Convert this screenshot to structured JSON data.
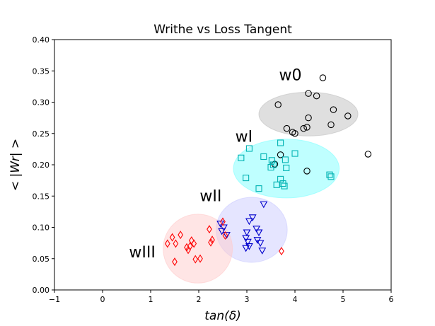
{
  "chart_data": {
    "type": "scatter",
    "title": "Writhe vs Loss Tangent",
    "xlabel": "tan(δ)",
    "ylabel": "< |Wr| >",
    "xlim": [
      -1,
      6
    ],
    "ylim": [
      0.0,
      0.4
    ],
    "xticks": [
      -1,
      0,
      1,
      2,
      3,
      4,
      5,
      6
    ],
    "xtick_labels": [
      "−1",
      "0",
      "1",
      "2",
      "3",
      "4",
      "5",
      "6"
    ],
    "yticks": [
      0.0,
      0.05,
      0.1,
      0.15,
      0.2,
      0.25,
      0.3,
      0.35,
      0.4
    ],
    "ytick_labels": [
      "0.00",
      "0.05",
      "0.10",
      "0.15",
      "0.20",
      "0.25",
      "0.30",
      "0.35",
      "0.40"
    ],
    "grid": false,
    "series": [
      {
        "name": "w0",
        "marker": "circle",
        "color": "#000000",
        "label_pos": [
          3.67,
          0.335
        ],
        "ellipse": {
          "cx": 4.28,
          "cy": 0.281,
          "rx": 1.03,
          "ry": 0.035,
          "fill": "#c0c0c0"
        },
        "points": [
          [
            4.58,
            0.339
          ],
          [
            4.28,
            0.314
          ],
          [
            4.45,
            0.31
          ],
          [
            3.65,
            0.296
          ],
          [
            4.8,
            0.288
          ],
          [
            5.1,
            0.278
          ],
          [
            4.28,
            0.275
          ],
          [
            4.75,
            0.264
          ],
          [
            4.18,
            0.258
          ],
          [
            4.25,
            0.26
          ],
          [
            3.83,
            0.258
          ],
          [
            3.95,
            0.252
          ],
          [
            4.0,
            0.25
          ],
          [
            3.7,
            0.216
          ],
          [
            5.52,
            0.217
          ],
          [
            3.58,
            0.201
          ],
          [
            4.25,
            0.19
          ]
        ]
      },
      {
        "name": "wI",
        "marker": "square",
        "color": "#00b2b2",
        "label_pos": [
          2.76,
          0.237
        ],
        "ellipse": {
          "cx": 3.82,
          "cy": 0.194,
          "rx": 1.1,
          "ry": 0.047,
          "fill": "#80ffff"
        },
        "points": [
          [
            3.7,
            0.235
          ],
          [
            3.05,
            0.226
          ],
          [
            3.35,
            0.213
          ],
          [
            4.0,
            0.218
          ],
          [
            2.88,
            0.211
          ],
          [
            3.52,
            0.207
          ],
          [
            3.8,
            0.208
          ],
          [
            3.55,
            0.2
          ],
          [
            3.5,
            0.196
          ],
          [
            3.82,
            0.195
          ],
          [
            4.72,
            0.184
          ],
          [
            4.75,
            0.181
          ],
          [
            2.98,
            0.179
          ],
          [
            3.7,
            0.177
          ],
          [
            3.75,
            0.17
          ],
          [
            3.62,
            0.168
          ],
          [
            3.78,
            0.166
          ],
          [
            3.25,
            0.162
          ]
        ]
      },
      {
        "name": "wII",
        "marker": "triangle-down",
        "color": "#0000cc",
        "label_pos": [
          2.02,
          0.142
        ],
        "ellipse": {
          "cx": 3.1,
          "cy": 0.096,
          "rx": 0.74,
          "ry": 0.052,
          "fill": "#ccccff"
        },
        "points": [
          [
            3.35,
            0.137
          ],
          [
            3.12,
            0.116
          ],
          [
            2.45,
            0.106
          ],
          [
            3.05,
            0.11
          ],
          [
            2.52,
            0.1
          ],
          [
            3.2,
            0.098
          ],
          [
            2.48,
            0.094
          ],
          [
            3.0,
            0.092
          ],
          [
            3.25,
            0.092
          ],
          [
            2.58,
            0.088
          ],
          [
            2.98,
            0.083
          ],
          [
            3.22,
            0.08
          ],
          [
            3.02,
            0.077
          ],
          [
            3.28,
            0.075
          ],
          [
            3.05,
            0.07
          ],
          [
            2.98,
            0.067
          ],
          [
            3.32,
            0.063
          ]
        ]
      },
      {
        "name": "wIII",
        "marker": "diamond",
        "color": "#ff0000",
        "label_pos": [
          0.55,
          0.052
        ],
        "ellipse": {
          "cx": 1.98,
          "cy": 0.066,
          "rx": 0.72,
          "ry": 0.055,
          "fill": "#ffcccc"
        },
        "points": [
          [
            2.5,
            0.109
          ],
          [
            2.22,
            0.097
          ],
          [
            1.62,
            0.088
          ],
          [
            2.55,
            0.087
          ],
          [
            1.45,
            0.084
          ],
          [
            1.85,
            0.079
          ],
          [
            1.35,
            0.074
          ],
          [
            1.52,
            0.074
          ],
          [
            1.75,
            0.068
          ],
          [
            2.28,
            0.08
          ],
          [
            2.25,
            0.076
          ],
          [
            1.9,
            0.074
          ],
          [
            1.82,
            0.07
          ],
          [
            1.78,
            0.064
          ],
          [
            3.72,
            0.062
          ],
          [
            2.03,
            0.05
          ],
          [
            1.93,
            0.049
          ],
          [
            1.5,
            0.045
          ]
        ]
      }
    ]
  }
}
